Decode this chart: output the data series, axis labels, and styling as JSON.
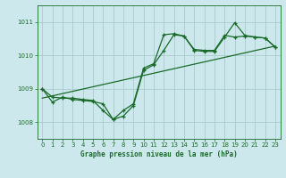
{
  "title": "Graphe pression niveau de la mer (hPa)",
  "background_color": "#cce8ec",
  "grid_color": "#aacccc",
  "line_color": "#1a6b2a",
  "xlim": [
    -0.5,
    23.5
  ],
  "ylim": [
    1007.5,
    1011.5
  ],
  "yticks": [
    1008,
    1009,
    1010,
    1011
  ],
  "ytick_labels": [
    "1008",
    "1009",
    "1010",
    "1011"
  ],
  "xticks": [
    0,
    1,
    2,
    3,
    4,
    5,
    6,
    7,
    8,
    9,
    10,
    11,
    12,
    13,
    14,
    15,
    16,
    17,
    18,
    19,
    20,
    21,
    22,
    23
  ],
  "series1_x": [
    0,
    1,
    2,
    3,
    4,
    5,
    6,
    7,
    8,
    9,
    10,
    11,
    12,
    13,
    14,
    15,
    16,
    17,
    18,
    19,
    20,
    21,
    22,
    23
  ],
  "series1_y": [
    1009.0,
    1008.75,
    1008.72,
    1008.72,
    1008.68,
    1008.65,
    1008.35,
    1008.08,
    1008.18,
    1008.5,
    1009.55,
    1009.72,
    1010.15,
    1010.62,
    1010.58,
    1010.15,
    1010.12,
    1010.12,
    1010.55,
    1010.98,
    1010.6,
    1010.55,
    1010.52,
    1010.25
  ],
  "series2_x": [
    0,
    1,
    2,
    3,
    4,
    5,
    6,
    7,
    8,
    9,
    10,
    11,
    12,
    13,
    14,
    15,
    16,
    17,
    18,
    19,
    20,
    21,
    22,
    23
  ],
  "series2_y": [
    1009.0,
    1008.6,
    1008.75,
    1008.68,
    1008.65,
    1008.62,
    1008.55,
    1008.08,
    1008.35,
    1008.55,
    1009.62,
    1009.75,
    1010.62,
    1010.65,
    1010.58,
    1010.18,
    1010.15,
    1010.15,
    1010.6,
    1010.55,
    1010.58,
    1010.55,
    1010.52,
    1010.25
  ],
  "trend_x": [
    0,
    23
  ],
  "trend_y": [
    1008.72,
    1010.28
  ]
}
